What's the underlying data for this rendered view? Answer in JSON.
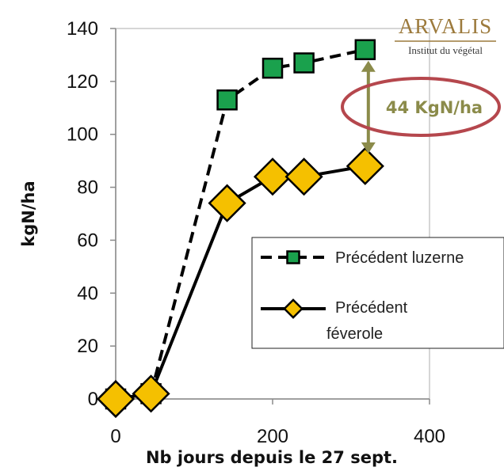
{
  "logo": {
    "name": "ARVALIS",
    "tagline": "Institut du végétal",
    "color": "#9c7a3c"
  },
  "annotation": {
    "text": "44 KgN/ha",
    "text_color": "#8b8b4a",
    "ellipse_color": "#b5474d",
    "arrow_color": "#8b8b4a"
  },
  "chart_data": {
    "type": "line",
    "title": "",
    "xlabel": "Nb jours depuis le 27 sept.",
    "ylabel": "kgN/ha",
    "xlim": [
      0,
      400
    ],
    "ylim": [
      0,
      140
    ],
    "xticks": [
      0,
      200,
      400
    ],
    "yticks": [
      0,
      20,
      40,
      60,
      80,
      100,
      120,
      140
    ],
    "grid": false,
    "legend_position": "bottom-right",
    "series": [
      {
        "name": "Précédent luzerne",
        "style": "dashed",
        "marker": "square",
        "color": "#1aa14d",
        "x": [
          0,
          45,
          142,
          200,
          240,
          318
        ],
        "y": [
          0,
          2,
          113,
          125,
          127,
          132
        ]
      },
      {
        "name": "Précédent féverole",
        "style": "solid",
        "marker": "diamond",
        "color": "#f5c000",
        "x": [
          0,
          45,
          142,
          200,
          240,
          318
        ],
        "y": [
          0,
          2,
          74,
          84,
          84,
          88
        ]
      }
    ]
  }
}
